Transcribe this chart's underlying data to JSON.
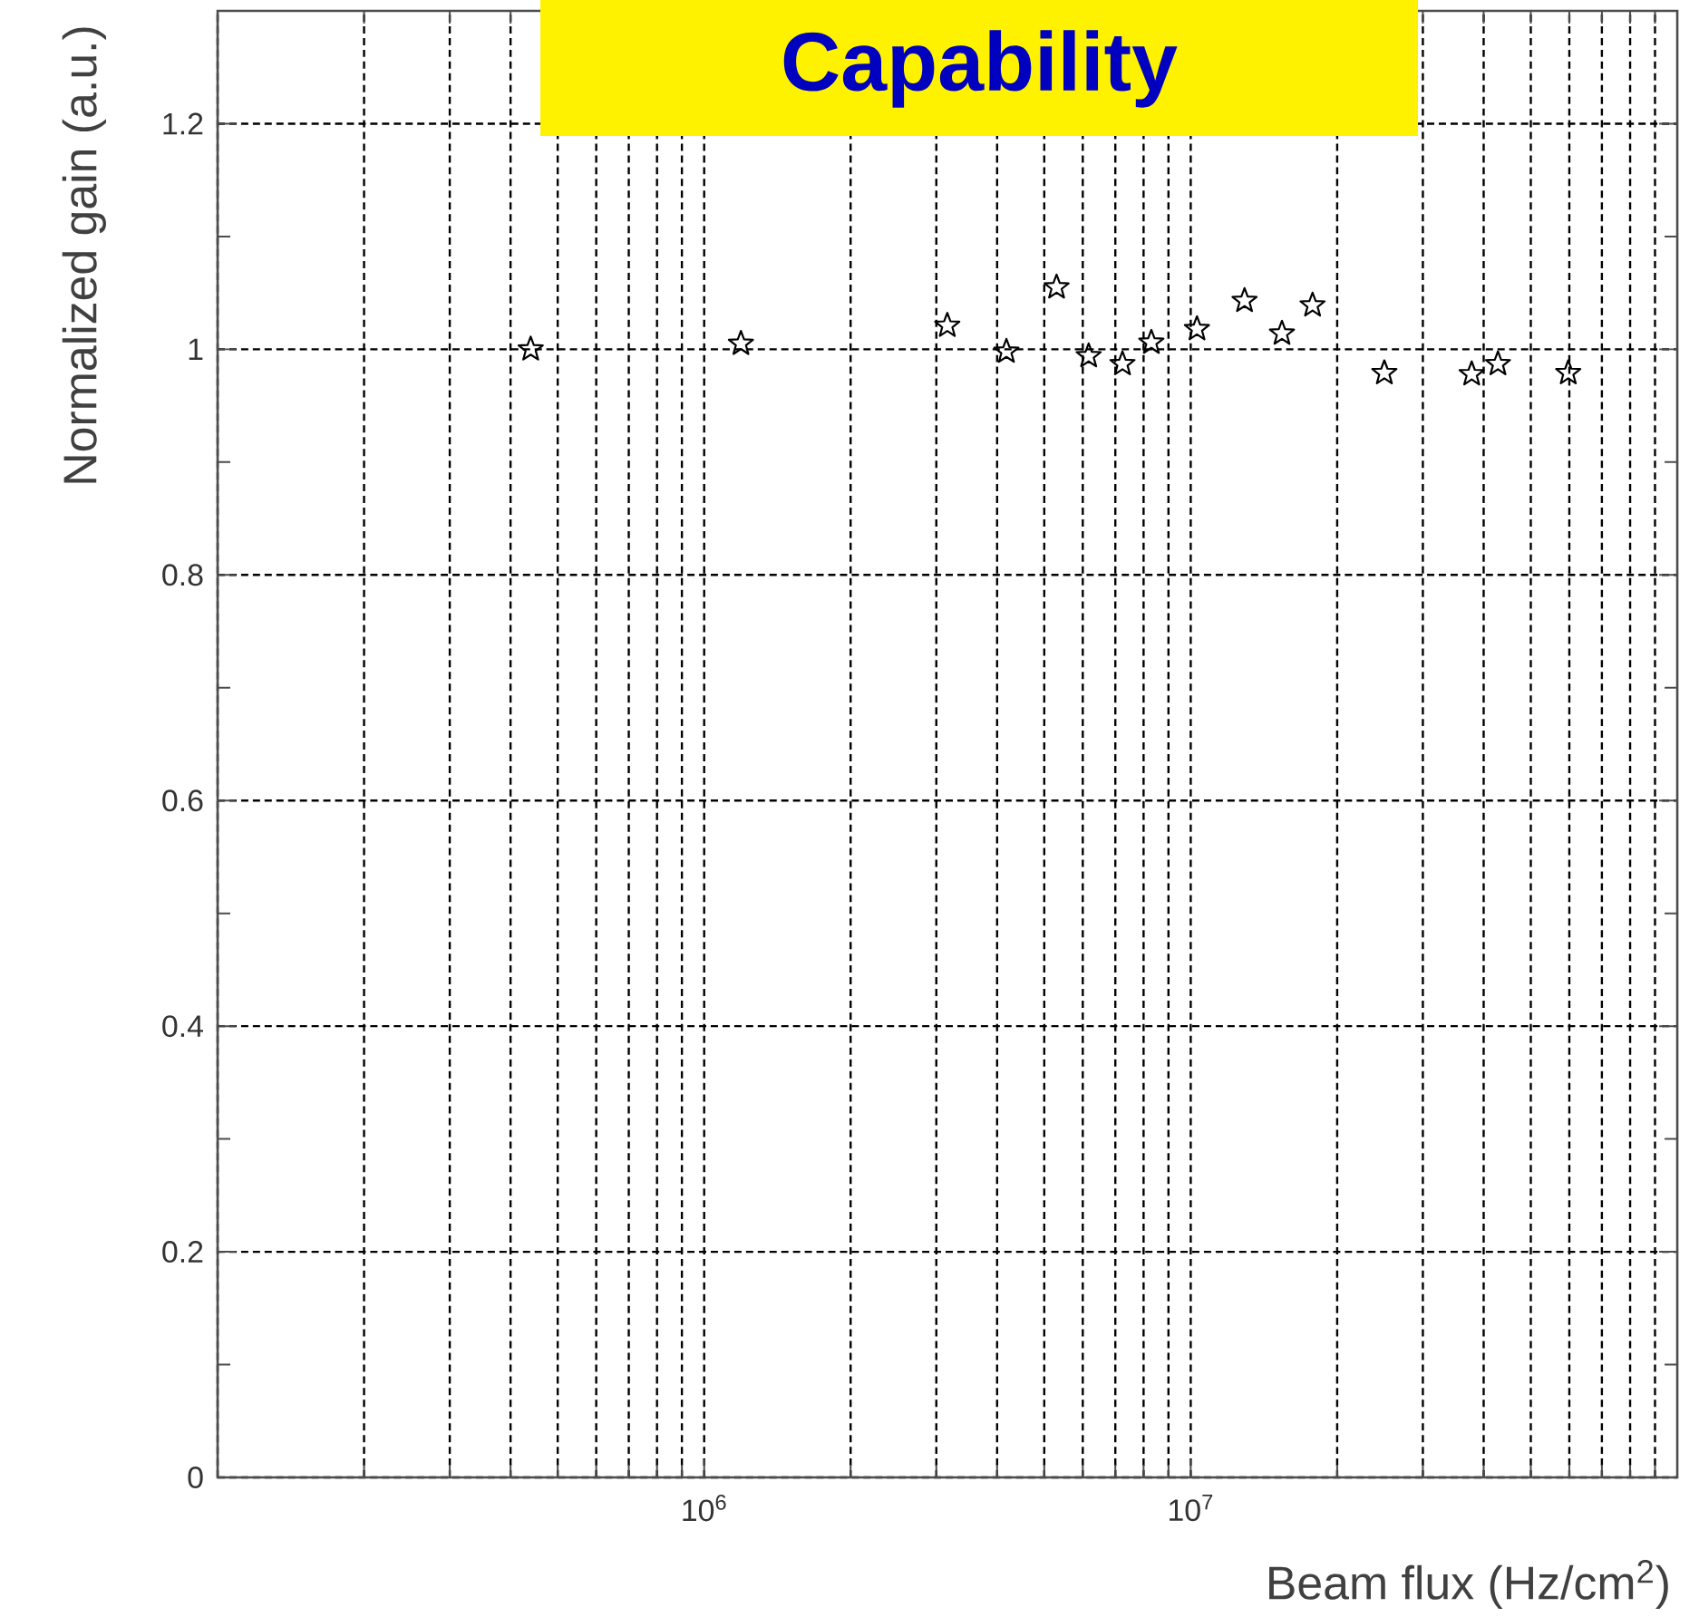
{
  "chart_data": {
    "type": "scatter",
    "title": "Capability",
    "xlabel": "Beam flux (Hz/cm$^{2}$)",
    "ylabel": "Normalized gain (a.u.)",
    "log": "x",
    "grid": true,
    "marker": "star",
    "xlim": [
      100000,
      100000000
    ],
    "ylim": [
      0,
      1.3
    ],
    "xticks": [
      {
        "value": 1000000,
        "label": "10$^{6}$"
      },
      {
        "value": 10000000,
        "label": "10$^{7}$"
      }
    ],
    "yticks": [
      0,
      0.2,
      0.4,
      0.6,
      0.8,
      1,
      1.2
    ],
    "series": [
      {
        "color": "#000000",
        "x": [
          440000,
          1190000,
          3160000,
          4180000,
          5300000,
          6170000,
          7240000,
          8300000,
          10300000,
          12900000,
          15400000,
          17800000,
          25000000,
          37800000,
          42800000,
          59700000
        ],
        "values": [
          1.0,
          1.005,
          1.021,
          0.998,
          1.055,
          0.994,
          0.987,
          1.006,
          1.018,
          1.043,
          1.014,
          1.039,
          0.979,
          0.978,
          0.987,
          0.979
        ]
      }
    ]
  }
}
